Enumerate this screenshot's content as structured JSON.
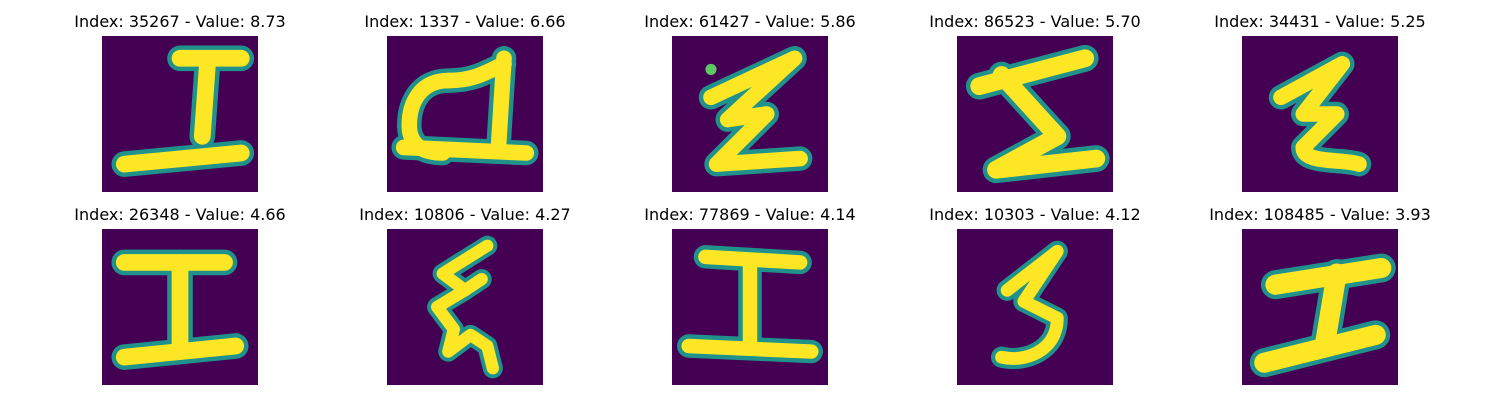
{
  "colors": {
    "background": "#440154",
    "edge": "#21918c",
    "mid": "#5ec962",
    "stroke": "#fde725"
  },
  "panels": [
    {
      "title": "Index: 35267 - Value: 8.73",
      "glyph": "I"
    },
    {
      "title": "Index: 1337 - Value: 6.66",
      "glyph": "a"
    },
    {
      "title": "Index: 61427 - Value: 5.86",
      "glyph": "z"
    },
    {
      "title": "Index: 86523 - Value: 5.70",
      "glyph": "Σ"
    },
    {
      "title": "Index: 34431 - Value: 5.25",
      "glyph": "ε"
    },
    {
      "title": "Index: 26348 - Value: 4.66",
      "glyph": "I"
    },
    {
      "title": "Index: 10806 - Value: 4.27",
      "glyph": "ξ"
    },
    {
      "title": "Index: 77869 - Value: 4.14",
      "glyph": "I"
    },
    {
      "title": "Index: 10303 - Value: 4.12",
      "glyph": "3"
    },
    {
      "title": "Index: 108485 - Value: 3.93",
      "glyph": "I"
    }
  ]
}
